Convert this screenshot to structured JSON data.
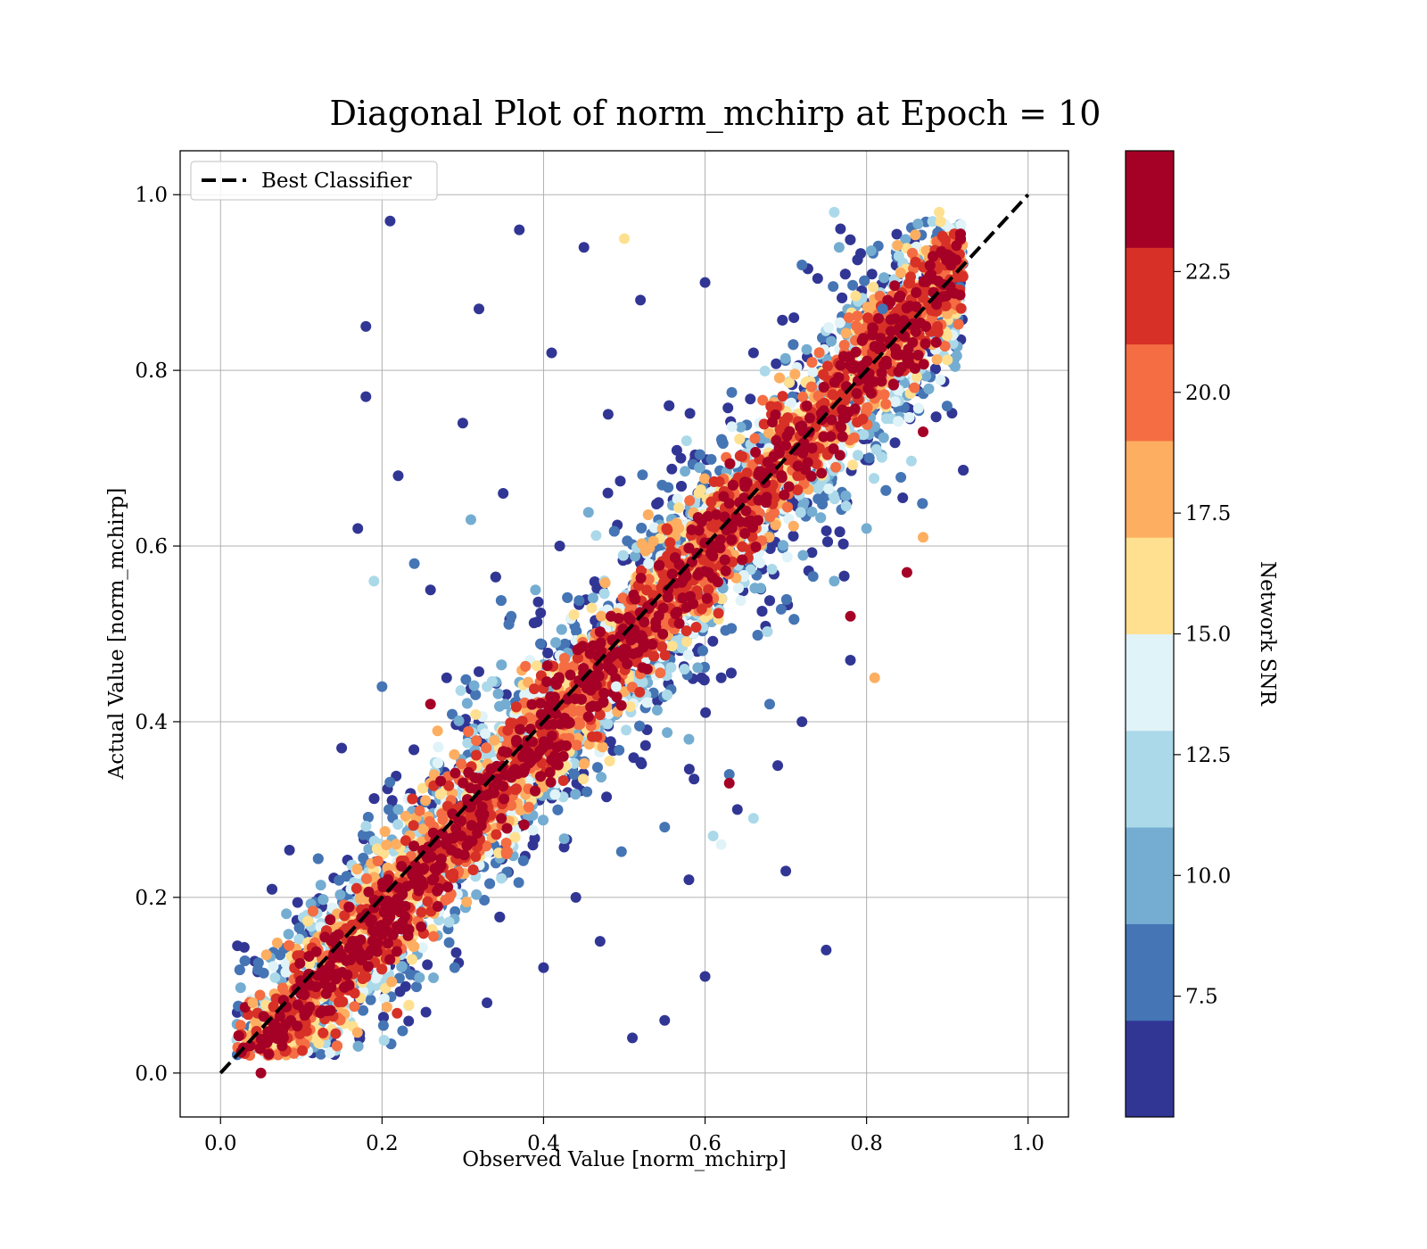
{
  "chart_data": {
    "type": "scatter",
    "title": "Diagonal Plot of norm_mchirp at Epoch = 10",
    "xlabel": "Observed Value [norm_mchirp]",
    "ylabel": "Actual Value [norm_mchirp]",
    "xlim": [
      -0.05,
      1.05
    ],
    "ylim": [
      -0.05,
      1.05
    ],
    "xticks": [
      "0.0",
      "0.2",
      "0.4",
      "0.6",
      "0.8",
      "1.0"
    ],
    "yticks": [
      "0.0",
      "0.2",
      "0.4",
      "0.6",
      "0.8",
      "1.0"
    ],
    "grid": true,
    "legend": {
      "placement": "upper-left",
      "entries": [
        "Best Classifier"
      ]
    },
    "reference_line": {
      "name": "Best Classifier",
      "x": [
        0.0,
        1.0
      ],
      "y": [
        0.0,
        1.0
      ],
      "style": "dashed",
      "color": "#000000"
    },
    "colorbar": {
      "label": "Network SNR",
      "min": 5.0,
      "max": 25.0,
      "ticks": [
        "7.5",
        "10.0",
        "12.5",
        "15.0",
        "17.5",
        "20.0",
        "22.5"
      ],
      "tick_values": [
        7.5,
        10.0,
        12.5,
        15.0,
        17.5,
        20.0,
        22.5
      ],
      "colors": [
        "#313695",
        "#4575b4",
        "#74add1",
        "#abd9e9",
        "#e0f3f8",
        "#fee090",
        "#fdae61",
        "#f46d43",
        "#d73027",
        "#a50026"
      ],
      "boundaries": [
        5.0,
        7.0,
        9.0,
        11.0,
        13.0,
        15.0,
        17.0,
        19.0,
        21.0,
        23.0,
        25.0
      ]
    },
    "series": [
      {
        "points": [
          {
            "x": 0.21,
            "y": 0.97,
            "snr": 6
          },
          {
            "x": 0.37,
            "y": 0.96,
            "snr": 6
          },
          {
            "x": 0.45,
            "y": 0.94,
            "snr": 6
          },
          {
            "x": 0.18,
            "y": 0.85,
            "snr": 6
          },
          {
            "x": 0.18,
            "y": 0.77,
            "snr": 6
          },
          {
            "x": 0.22,
            "y": 0.68,
            "snr": 6
          },
          {
            "x": 0.15,
            "y": 0.37,
            "snr": 6
          },
          {
            "x": 0.17,
            "y": 0.62,
            "snr": 6
          },
          {
            "x": 0.32,
            "y": 0.87,
            "snr": 6
          },
          {
            "x": 0.41,
            "y": 0.82,
            "snr": 6
          },
          {
            "x": 0.52,
            "y": 0.88,
            "snr": 6
          },
          {
            "x": 0.6,
            "y": 0.9,
            "snr": 6
          },
          {
            "x": 0.26,
            "y": 0.55,
            "snr": 6
          },
          {
            "x": 0.3,
            "y": 0.74,
            "snr": 6
          },
          {
            "x": 0.35,
            "y": 0.66,
            "snr": 6
          },
          {
            "x": 0.28,
            "y": 0.45,
            "snr": 6
          },
          {
            "x": 0.42,
            "y": 0.6,
            "snr": 6
          },
          {
            "x": 0.48,
            "y": 0.75,
            "snr": 6
          },
          {
            "x": 0.7,
            "y": 0.23,
            "snr": 6
          },
          {
            "x": 0.75,
            "y": 0.14,
            "snr": 6
          },
          {
            "x": 0.78,
            "y": 0.47,
            "snr": 6
          },
          {
            "x": 0.55,
            "y": 0.06,
            "snr": 6
          },
          {
            "x": 0.51,
            "y": 0.04,
            "snr": 6
          },
          {
            "x": 0.6,
            "y": 0.11,
            "snr": 6
          },
          {
            "x": 0.64,
            "y": 0.3,
            "snr": 6
          },
          {
            "x": 0.58,
            "y": 0.22,
            "snr": 6
          },
          {
            "x": 0.47,
            "y": 0.15,
            "snr": 6
          },
          {
            "x": 0.4,
            "y": 0.12,
            "snr": 6
          },
          {
            "x": 0.33,
            "y": 0.08,
            "snr": 6
          },
          {
            "x": 0.44,
            "y": 0.2,
            "snr": 6
          },
          {
            "x": 0.69,
            "y": 0.35,
            "snr": 6
          },
          {
            "x": 0.72,
            "y": 0.4,
            "snr": 6
          },
          {
            "x": 0.62,
            "y": 0.45,
            "snr": 6
          },
          {
            "x": 0.66,
            "y": 0.82,
            "snr": 6
          },
          {
            "x": 0.71,
            "y": 0.86,
            "snr": 6
          },
          {
            "x": 0.57,
            "y": 0.7,
            "snr": 6
          },
          {
            "x": 0.2,
            "y": 0.44,
            "snr": 8
          },
          {
            "x": 0.24,
            "y": 0.58,
            "snr": 8
          },
          {
            "x": 0.36,
            "y": 0.52,
            "snr": 8
          },
          {
            "x": 0.55,
            "y": 0.28,
            "snr": 8
          },
          {
            "x": 0.63,
            "y": 0.34,
            "snr": 8
          },
          {
            "x": 0.68,
            "y": 0.42,
            "snr": 8
          },
          {
            "x": 0.72,
            "y": 0.92,
            "snr": 8
          },
          {
            "x": 0.82,
            "y": 0.87,
            "snr": 8
          },
          {
            "x": 0.29,
            "y": 0.12,
            "snr": 8
          },
          {
            "x": 0.31,
            "y": 0.63,
            "snr": 10
          },
          {
            "x": 0.39,
            "y": 0.55,
            "snr": 10
          },
          {
            "x": 0.58,
            "y": 0.38,
            "snr": 10
          },
          {
            "x": 0.76,
            "y": 0.56,
            "snr": 10
          },
          {
            "x": 0.8,
            "y": 0.62,
            "snr": 10
          },
          {
            "x": 0.22,
            "y": 0.3,
            "snr": 10
          },
          {
            "x": 0.19,
            "y": 0.56,
            "snr": 12
          },
          {
            "x": 0.33,
            "y": 0.44,
            "snr": 12
          },
          {
            "x": 0.66,
            "y": 0.29,
            "snr": 12
          },
          {
            "x": 0.76,
            "y": 0.98,
            "snr": 12
          },
          {
            "x": 0.84,
            "y": 0.93,
            "snr": 12
          },
          {
            "x": 0.61,
            "y": 0.27,
            "snr": 12
          },
          {
            "x": 0.49,
            "y": 0.44,
            "snr": 14
          },
          {
            "x": 0.53,
            "y": 0.58,
            "snr": 14
          },
          {
            "x": 0.62,
            "y": 0.26,
            "snr": 14
          },
          {
            "x": 0.5,
            "y": 0.95,
            "snr": 16
          },
          {
            "x": 0.81,
            "y": 0.45,
            "snr": 18
          },
          {
            "x": 0.87,
            "y": 0.61,
            "snr": 18
          },
          {
            "x": 0.04,
            "y": 0.08,
            "snr": 18
          },
          {
            "x": 0.89,
            "y": 0.98,
            "snr": 16
          },
          {
            "x": 0.87,
            "y": 0.73,
            "snr": 24
          },
          {
            "x": 0.85,
            "y": 0.57,
            "snr": 24
          },
          {
            "x": 0.05,
            "y": 0.0,
            "snr": 24
          },
          {
            "x": 0.63,
            "y": 0.33,
            "snr": 24
          },
          {
            "x": 0.26,
            "y": 0.42,
            "snr": 24
          },
          {
            "x": 0.78,
            "y": 0.52,
            "snr": 24
          }
        ]
      }
    ]
  }
}
